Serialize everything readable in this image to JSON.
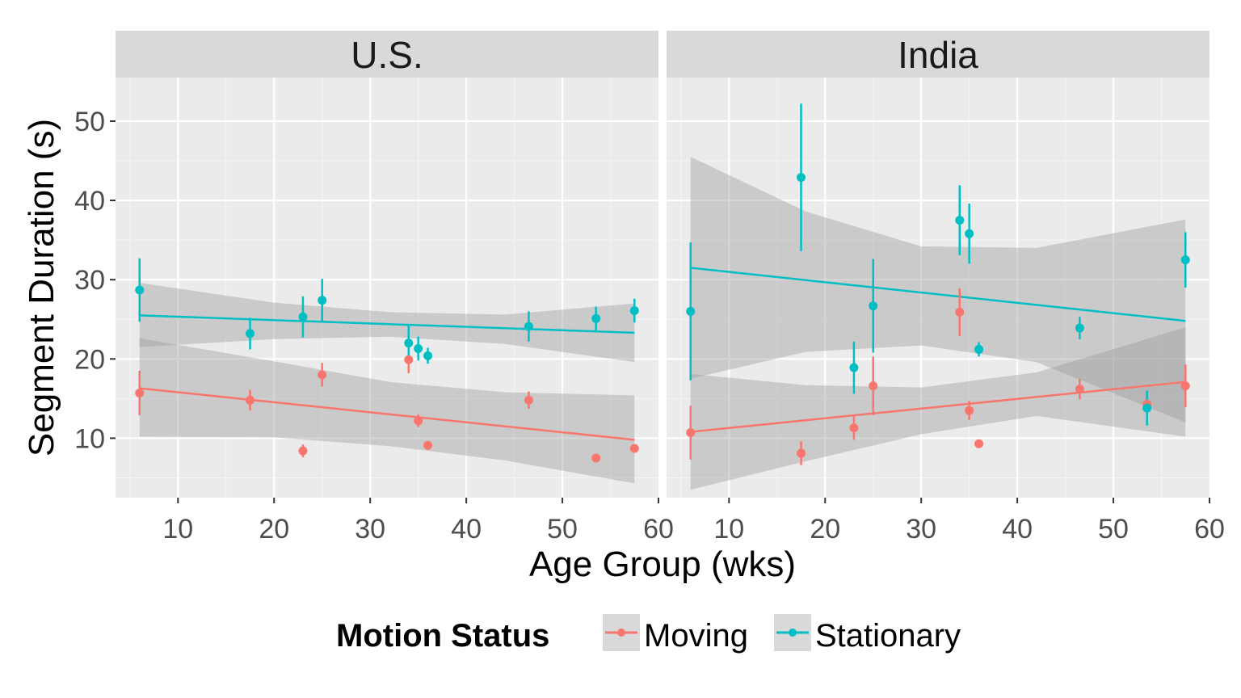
{
  "chart_data": {
    "type": "scatter",
    "xlabel": "Age Group (wks)",
    "ylabel": "Segment Duration (s)",
    "xlim": [
      3.5,
      60
    ],
    "ylim": [
      2.5,
      55.5
    ],
    "x_ticks": [
      10,
      20,
      30,
      40,
      50,
      60
    ],
    "y_ticks": [
      10,
      20,
      30,
      40,
      50
    ],
    "grid": true,
    "legend": {
      "title": "Motion Status",
      "position": "bottom",
      "entries": [
        {
          "name": "Moving",
          "color": "#F8766D"
        },
        {
          "name": "Stationary",
          "color": "#00BFC4"
        }
      ]
    },
    "facets": [
      {
        "name": "U.S.",
        "series": [
          {
            "name": "Moving",
            "color": "#F8766D",
            "points": [
              {
                "x": 6,
                "y": 15.7,
                "lo": 12.9,
                "hi": 18.5
              },
              {
                "x": 17.5,
                "y": 14.8,
                "lo": 13.5,
                "hi": 16.1
              },
              {
                "x": 23,
                "y": 8.4,
                "lo": 7.6,
                "hi": 9.2
              },
              {
                "x": 25,
                "y": 18.0,
                "lo": 16.5,
                "hi": 19.5
              },
              {
                "x": 34,
                "y": 19.9,
                "lo": 18.2,
                "hi": 21.6
              },
              {
                "x": 35,
                "y": 12.2,
                "lo": 11.4,
                "hi": 13.0
              },
              {
                "x": 36,
                "y": 9.1,
                "lo": 8.6,
                "hi": 9.6
              },
              {
                "x": 46.5,
                "y": 14.8,
                "lo": 13.7,
                "hi": 15.9
              },
              {
                "x": 53.5,
                "y": 7.5,
                "lo": 7.1,
                "hi": 7.9
              },
              {
                "x": 57.5,
                "y": 8.7,
                "lo": 8.2,
                "hi": 9.2
              }
            ],
            "fit": {
              "x": [
                6,
                57.5
              ],
              "y": [
                16.3,
                9.8
              ]
            },
            "band": {
              "x": [
                6,
                20,
                32,
                44,
                57.5
              ],
              "lo": [
                10.2,
                10.1,
                9.0,
                7.2,
                4.3
              ],
              "hi": [
                22.6,
                19.7,
                17.1,
                15.8,
                15.4
              ]
            }
          },
          {
            "name": "Stationary",
            "color": "#00BFC4",
            "points": [
              {
                "x": 6,
                "y": 28.7,
                "lo": 24.7,
                "hi": 32.7
              },
              {
                "x": 17.5,
                "y": 23.2,
                "lo": 21.2,
                "hi": 25.2
              },
              {
                "x": 23,
                "y": 25.3,
                "lo": 22.7,
                "hi": 27.9
              },
              {
                "x": 25,
                "y": 27.4,
                "lo": 24.7,
                "hi": 30.1
              },
              {
                "x": 34,
                "y": 22.0,
                "lo": 19.8,
                "hi": 24.2
              },
              {
                "x": 35,
                "y": 21.3,
                "lo": 19.8,
                "hi": 22.8
              },
              {
                "x": 36,
                "y": 20.4,
                "lo": 19.4,
                "hi": 21.4
              },
              {
                "x": 46.5,
                "y": 24.1,
                "lo": 22.2,
                "hi": 26.0
              },
              {
                "x": 53.5,
                "y": 25.1,
                "lo": 23.6,
                "hi": 26.6
              },
              {
                "x": 57.5,
                "y": 26.1,
                "lo": 24.6,
                "hi": 27.6
              }
            ],
            "fit": {
              "x": [
                6,
                57.5
              ],
              "y": [
                25.5,
                23.3
              ]
            },
            "band": {
              "x": [
                6,
                20,
                32,
                44,
                57.5
              ],
              "lo": [
                21.5,
                22.5,
                22.8,
                21.9,
                19.6
              ],
              "hi": [
                29.6,
                27.1,
                25.9,
                25.6,
                27.0
              ]
            }
          }
        ]
      },
      {
        "name": "India",
        "series": [
          {
            "name": "Moving",
            "color": "#F8766D",
            "points": [
              {
                "x": 6,
                "y": 10.7,
                "lo": 7.3,
                "hi": 14.1
              },
              {
                "x": 17.5,
                "y": 8.1,
                "lo": 6.6,
                "hi": 9.6
              },
              {
                "x": 23,
                "y": 11.3,
                "lo": 9.8,
                "hi": 12.8
              },
              {
                "x": 25,
                "y": 16.6,
                "lo": 12.9,
                "hi": 20.3
              },
              {
                "x": 34,
                "y": 25.9,
                "lo": 22.9,
                "hi": 28.9
              },
              {
                "x": 35,
                "y": 13.5,
                "lo": 12.3,
                "hi": 14.7
              },
              {
                "x": 36,
                "y": 9.3,
                "lo": 8.9,
                "hi": 9.7
              },
              {
                "x": 46.5,
                "y": 16.2,
                "lo": 14.9,
                "hi": 17.5
              },
              {
                "x": 53.5,
                "y": 14.3,
                "lo": 13.1,
                "hi": 15.5
              },
              {
                "x": 57.5,
                "y": 16.6,
                "lo": 13.9,
                "hi": 19.3
              }
            ],
            "fit": {
              "x": [
                6,
                57.5
              ],
              "y": [
                10.8,
                17.1
              ]
            },
            "band": {
              "x": [
                6,
                18,
                30,
                42,
                57.5
              ],
              "lo": [
                3.5,
                7.1,
                10.5,
                12.8,
                10.2
              ],
              "hi": [
                18.1,
                16.7,
                16.4,
                18.3,
                24.0
              ]
            }
          },
          {
            "name": "Stationary",
            "color": "#00BFC4",
            "points": [
              {
                "x": 6,
                "y": 26.0,
                "lo": 17.3,
                "hi": 34.7
              },
              {
                "x": 17.5,
                "y": 42.9,
                "lo": 33.6,
                "hi": 52.2
              },
              {
                "x": 23,
                "y": 18.9,
                "lo": 15.6,
                "hi": 22.2
              },
              {
                "x": 25,
                "y": 26.7,
                "lo": 20.8,
                "hi": 32.6
              },
              {
                "x": 34,
                "y": 37.5,
                "lo": 33.1,
                "hi": 41.9
              },
              {
                "x": 35,
                "y": 35.8,
                "lo": 32.0,
                "hi": 39.6
              },
              {
                "x": 36,
                "y": 21.2,
                "lo": 20.3,
                "hi": 22.1
              },
              {
                "x": 46.5,
                "y": 23.9,
                "lo": 22.5,
                "hi": 25.3
              },
              {
                "x": 53.5,
                "y": 13.8,
                "lo": 11.6,
                "hi": 16.0
              },
              {
                "x": 57.5,
                "y": 32.5,
                "lo": 29.0,
                "hi": 36.0
              }
            ],
            "fit": {
              "x": [
                6,
                57.5
              ],
              "y": [
                31.5,
                24.8
              ]
            },
            "band": {
              "x": [
                6,
                18,
                30,
                42,
                57.5
              ],
              "lo": [
                17.5,
                20.9,
                21.7,
                19.6,
                12.0
              ],
              "hi": [
                45.5,
                38.6,
                34.2,
                34.0,
                37.6
              ]
            }
          }
        ]
      }
    ]
  }
}
